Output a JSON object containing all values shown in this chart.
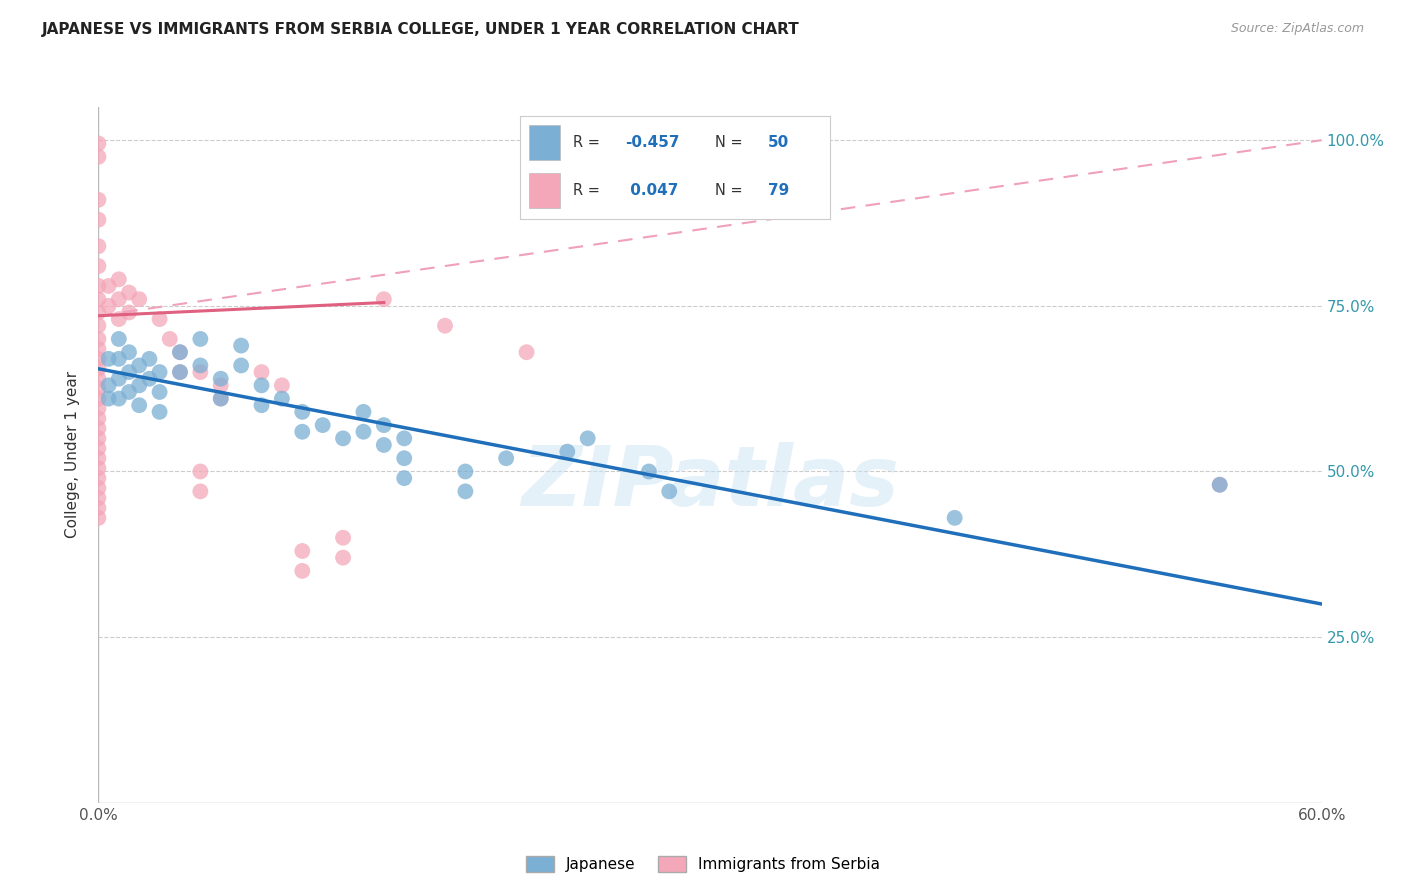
{
  "title": "JAPANESE VS IMMIGRANTS FROM SERBIA COLLEGE, UNDER 1 YEAR CORRELATION CHART",
  "source": "Source: ZipAtlas.com",
  "ylabel": "College, Under 1 year",
  "xlim": [
    0.0,
    0.6
  ],
  "ylim": [
    0.0,
    1.05
  ],
  "xticks": [
    0.0,
    0.1,
    0.2,
    0.3,
    0.4,
    0.5,
    0.6
  ],
  "xticklabels": [
    "0.0%",
    "",
    "",
    "",
    "",
    "",
    "60.0%"
  ],
  "yticks": [
    0.0,
    0.25,
    0.5,
    0.75,
    1.0
  ],
  "yticklabels": [
    "",
    "25.0%",
    "50.0%",
    "75.0%",
    "100.0%"
  ],
  "legend_labels": [
    "Japanese",
    "Immigrants from Serbia"
  ],
  "blue_color": "#7BAFD4",
  "pink_color": "#F4A7B9",
  "blue_line_color": "#1F6FBA",
  "pink_solid_color": "#E06080",
  "pink_dashed_color": "#F0A0B8",
  "watermark": "ZIPatlas",
  "japanese_points": [
    [
      0.005,
      0.67
    ],
    [
      0.005,
      0.63
    ],
    [
      0.005,
      0.61
    ],
    [
      0.01,
      0.7
    ],
    [
      0.01,
      0.67
    ],
    [
      0.01,
      0.64
    ],
    [
      0.01,
      0.61
    ],
    [
      0.015,
      0.68
    ],
    [
      0.015,
      0.65
    ],
    [
      0.015,
      0.62
    ],
    [
      0.02,
      0.66
    ],
    [
      0.02,
      0.63
    ],
    [
      0.02,
      0.6
    ],
    [
      0.025,
      0.67
    ],
    [
      0.025,
      0.64
    ],
    [
      0.03,
      0.65
    ],
    [
      0.03,
      0.62
    ],
    [
      0.03,
      0.59
    ],
    [
      0.04,
      0.68
    ],
    [
      0.04,
      0.65
    ],
    [
      0.05,
      0.7
    ],
    [
      0.05,
      0.66
    ],
    [
      0.06,
      0.64
    ],
    [
      0.06,
      0.61
    ],
    [
      0.07,
      0.69
    ],
    [
      0.07,
      0.66
    ],
    [
      0.08,
      0.63
    ],
    [
      0.08,
      0.6
    ],
    [
      0.09,
      0.61
    ],
    [
      0.1,
      0.59
    ],
    [
      0.1,
      0.56
    ],
    [
      0.11,
      0.57
    ],
    [
      0.12,
      0.55
    ],
    [
      0.13,
      0.59
    ],
    [
      0.13,
      0.56
    ],
    [
      0.14,
      0.57
    ],
    [
      0.14,
      0.54
    ],
    [
      0.15,
      0.55
    ],
    [
      0.15,
      0.52
    ],
    [
      0.15,
      0.49
    ],
    [
      0.18,
      0.5
    ],
    [
      0.18,
      0.47
    ],
    [
      0.2,
      0.52
    ],
    [
      0.23,
      0.53
    ],
    [
      0.24,
      0.55
    ],
    [
      0.27,
      0.5
    ],
    [
      0.28,
      0.47
    ],
    [
      0.42,
      0.43
    ],
    [
      0.55,
      0.48
    ]
  ],
  "serbia_points": [
    [
      0.0,
      0.995
    ],
    [
      0.0,
      0.975
    ],
    [
      0.0,
      0.91
    ],
    [
      0.0,
      0.88
    ],
    [
      0.0,
      0.84
    ],
    [
      0.0,
      0.81
    ],
    [
      0.0,
      0.78
    ],
    [
      0.0,
      0.76
    ],
    [
      0.0,
      0.74
    ],
    [
      0.0,
      0.72
    ],
    [
      0.0,
      0.7
    ],
    [
      0.0,
      0.685
    ],
    [
      0.0,
      0.67
    ],
    [
      0.0,
      0.655
    ],
    [
      0.0,
      0.64
    ],
    [
      0.0,
      0.625
    ],
    [
      0.0,
      0.61
    ],
    [
      0.0,
      0.595
    ],
    [
      0.0,
      0.58
    ],
    [
      0.0,
      0.565
    ],
    [
      0.0,
      0.55
    ],
    [
      0.0,
      0.535
    ],
    [
      0.0,
      0.52
    ],
    [
      0.0,
      0.505
    ],
    [
      0.0,
      0.49
    ],
    [
      0.0,
      0.475
    ],
    [
      0.0,
      0.46
    ],
    [
      0.0,
      0.445
    ],
    [
      0.0,
      0.43
    ],
    [
      0.005,
      0.78
    ],
    [
      0.005,
      0.75
    ],
    [
      0.01,
      0.79
    ],
    [
      0.01,
      0.76
    ],
    [
      0.01,
      0.73
    ],
    [
      0.015,
      0.77
    ],
    [
      0.015,
      0.74
    ],
    [
      0.02,
      0.76
    ],
    [
      0.03,
      0.73
    ],
    [
      0.035,
      0.7
    ],
    [
      0.04,
      0.68
    ],
    [
      0.04,
      0.65
    ],
    [
      0.05,
      0.65
    ],
    [
      0.05,
      0.5
    ],
    [
      0.05,
      0.47
    ],
    [
      0.06,
      0.63
    ],
    [
      0.06,
      0.61
    ],
    [
      0.08,
      0.65
    ],
    [
      0.09,
      0.63
    ],
    [
      0.1,
      0.38
    ],
    [
      0.1,
      0.35
    ],
    [
      0.12,
      0.4
    ],
    [
      0.12,
      0.37
    ],
    [
      0.14,
      0.76
    ],
    [
      0.17,
      0.72
    ],
    [
      0.21,
      0.68
    ],
    [
      0.55,
      0.48
    ]
  ],
  "blue_line": [
    [
      0.0,
      0.655
    ],
    [
      0.6,
      0.3
    ]
  ],
  "pink_solid_line": [
    [
      0.0,
      0.735
    ],
    [
      0.14,
      0.755
    ]
  ],
  "pink_dashed_line": [
    [
      0.0,
      0.735
    ],
    [
      0.6,
      1.0
    ]
  ]
}
